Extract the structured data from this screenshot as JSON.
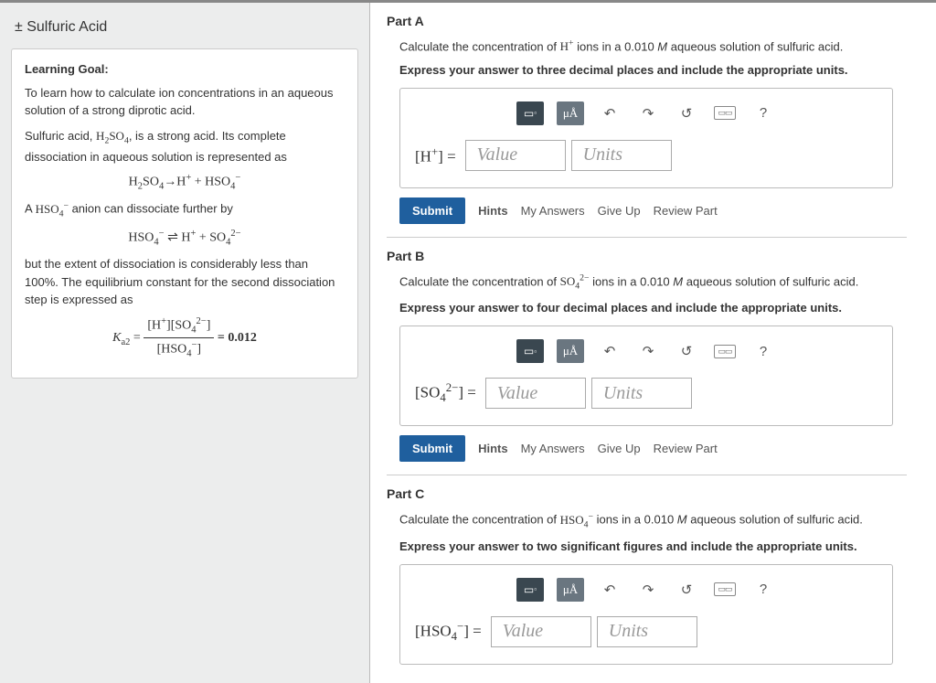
{
  "left": {
    "title": "± Sulfuric Acid",
    "learning_goal_label": "Learning Goal:",
    "lg_text1": "To learn how to calculate ion concentrations in an aqueous solution of a strong diprotic acid.",
    "lg_text2a": "Sulfuric acid, ",
    "lg_text2b": ", is a strong acid. Its complete dissociation in aqueous solution is represented as",
    "eq1": "H₂SO₄→H⁺ + HSO₄⁻",
    "lg_text3a": "A ",
    "lg_text3b": " anion can dissociate further by",
    "eq2": "HSO₄⁻ ⇌ H⁺ + SO₄²⁻",
    "lg_text4": "but the extent of dissociation is considerably less than 100%. The equilibrium constant for the second dissociation step is expressed as",
    "ka_val": "= 0.012"
  },
  "toolbar": {
    "undo": "↶",
    "redo": "↷",
    "reset": "↺",
    "help": "?"
  },
  "answer": {
    "value_ph": "Value",
    "units_ph": "Units",
    "submit": "Submit",
    "hints": "Hints",
    "myanswers": "My Answers",
    "giveup": "Give Up",
    "review": "Review Part"
  },
  "parts": [
    {
      "header": "Part A",
      "prompt_pre": "Calculate the concentration of ",
      "prompt_post": " ions in a 0.010 M aqueous solution of sulfuric acid.",
      "ion_html": "H<sup>+</sup>",
      "instr": "Express your answer to three decimal places and include the appropriate units.",
      "label_html": "[H<sup>+</sup>] ="
    },
    {
      "header": "Part B",
      "prompt_pre": "Calculate the concentration of ",
      "prompt_post": "  ions in a 0.010 M aqueous solution of sulfuric acid.",
      "ion_html": "SO<sub>4</sub><sup>2−</sup>",
      "instr": "Express your answer to four decimal places and include the appropriate units.",
      "label_html": "[SO<sub>4</sub><sup>2−</sup>] ="
    },
    {
      "header": "Part C",
      "prompt_pre": "Calculate the concentration of ",
      "prompt_post": " ions in a 0.010 M aqueous solution of sulfuric acid.",
      "ion_html": "HSO<sub>4</sub><sup>−</sup>",
      "instr": "Express your answer to two significant figures and include the appropriate units.",
      "label_html": "[HSO<sub>4</sub><sup>−</sup>] ="
    }
  ]
}
